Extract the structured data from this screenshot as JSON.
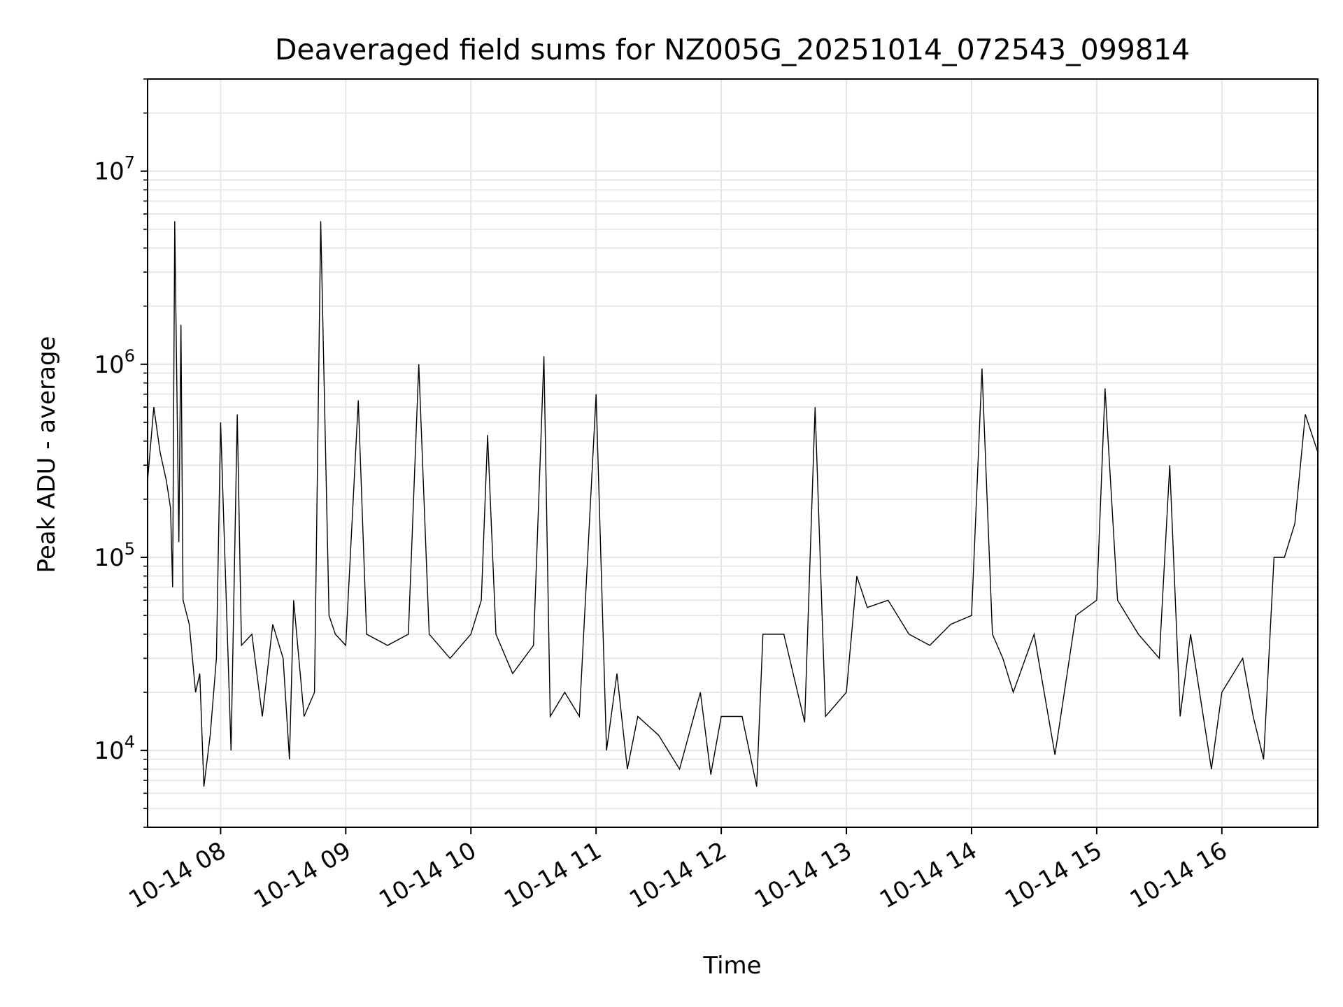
{
  "chart_data": {
    "type": "line",
    "title": "Deaveraged field sums for NZ005G_20251014_072543_099814",
    "xlabel": "Time",
    "ylabel": "Peak ADU - average",
    "x_scale": "time",
    "y_scale": "log",
    "grid": true,
    "grid_minor": true,
    "line_color": "#000000",
    "grid_color": "#e6e6e6",
    "xlim": [
      "2025-10-14 07:25",
      "2025-10-14 16:46"
    ],
    "ylim": [
      4000,
      30000000
    ],
    "x_ticks": [
      {
        "value": "2025-10-14 08:00",
        "label": "10-14 08"
      },
      {
        "value": "2025-10-14 09:00",
        "label": "10-14 09"
      },
      {
        "value": "2025-10-14 10:00",
        "label": "10-14 10"
      },
      {
        "value": "2025-10-14 11:00",
        "label": "10-14 11"
      },
      {
        "value": "2025-10-14 12:00",
        "label": "10-14 12"
      },
      {
        "value": "2025-10-14 13:00",
        "label": "10-14 13"
      },
      {
        "value": "2025-10-14 14:00",
        "label": "10-14 14"
      },
      {
        "value": "2025-10-14 15:00",
        "label": "10-14 15"
      },
      {
        "value": "2025-10-14 16:00",
        "label": "10-14 16"
      }
    ],
    "y_ticks": [
      {
        "value": 10000,
        "base": "10",
        "exp": "4"
      },
      {
        "value": 100000,
        "base": "10",
        "exp": "5"
      },
      {
        "value": 1000000,
        "base": "10",
        "exp": "6"
      },
      {
        "value": 10000000,
        "base": "10",
        "exp": "7"
      }
    ],
    "series": [
      {
        "x": [
          "2025-10-14 07:25",
          "2025-10-14 07:28",
          "2025-10-14 07:31",
          "2025-10-14 07:34",
          "2025-10-14 07:36",
          "2025-10-14 07:37",
          "2025-10-14 07:38",
          "2025-10-14 07:40",
          "2025-10-14 07:41",
          "2025-10-14 07:42",
          "2025-10-14 07:45",
          "2025-10-14 07:48",
          "2025-10-14 07:50",
          "2025-10-14 07:52",
          "2025-10-14 07:55",
          "2025-10-14 07:58",
          "2025-10-14 08:00",
          "2025-10-14 08:05",
          "2025-10-14 08:08",
          "2025-10-14 08:10",
          "2025-10-14 08:15",
          "2025-10-14 08:20",
          "2025-10-14 08:25",
          "2025-10-14 08:30",
          "2025-10-14 08:33",
          "2025-10-14 08:35",
          "2025-10-14 08:40",
          "2025-10-14 08:45",
          "2025-10-14 08:48",
          "2025-10-14 08:52",
          "2025-10-14 08:55",
          "2025-10-14 09:00",
          "2025-10-14 09:06",
          "2025-10-14 09:10",
          "2025-10-14 09:20",
          "2025-10-14 09:30",
          "2025-10-14 09:35",
          "2025-10-14 09:40",
          "2025-10-14 09:50",
          "2025-10-14 10:00",
          "2025-10-14 10:05",
          "2025-10-14 10:08",
          "2025-10-14 10:12",
          "2025-10-14 10:20",
          "2025-10-14 10:30",
          "2025-10-14 10:35",
          "2025-10-14 10:38",
          "2025-10-14 10:45",
          "2025-10-14 10:52",
          "2025-10-14 11:00",
          "2025-10-14 11:05",
          "2025-10-14 11:10",
          "2025-10-14 11:15",
          "2025-10-14 11:20",
          "2025-10-14 11:30",
          "2025-10-14 11:40",
          "2025-10-14 11:50",
          "2025-10-14 11:55",
          "2025-10-14 12:00",
          "2025-10-14 12:10",
          "2025-10-14 12:17",
          "2025-10-14 12:20",
          "2025-10-14 12:30",
          "2025-10-14 12:40",
          "2025-10-14 12:45",
          "2025-10-14 12:50",
          "2025-10-14 13:00",
          "2025-10-14 13:05",
          "2025-10-14 13:10",
          "2025-10-14 13:20",
          "2025-10-14 13:30",
          "2025-10-14 13:40",
          "2025-10-14 13:50",
          "2025-10-14 14:00",
          "2025-10-14 14:05",
          "2025-10-14 14:10",
          "2025-10-14 14:15",
          "2025-10-14 14:20",
          "2025-10-14 14:30",
          "2025-10-14 14:40",
          "2025-10-14 14:50",
          "2025-10-14 15:00",
          "2025-10-14 15:04",
          "2025-10-14 15:10",
          "2025-10-14 15:20",
          "2025-10-14 15:30",
          "2025-10-14 15:35",
          "2025-10-14 15:40",
          "2025-10-14 15:45",
          "2025-10-14 15:55",
          "2025-10-14 16:00",
          "2025-10-14 16:10",
          "2025-10-14 16:15",
          "2025-10-14 16:20",
          "2025-10-14 16:25",
          "2025-10-14 16:30",
          "2025-10-14 16:35",
          "2025-10-14 16:40",
          "2025-10-14 16:46"
        ],
        "values": [
          250000,
          600000,
          350000,
          250000,
          180000,
          70000,
          5500000,
          120000,
          1600000,
          60000,
          45000,
          20000,
          25000,
          6500,
          12000,
          30000,
          500000,
          10000,
          550000,
          35000,
          40000,
          15000,
          45000,
          30000,
          9000,
          60000,
          15000,
          20000,
          5500000,
          50000,
          40000,
          35000,
          650000,
          40000,
          35000,
          40000,
          1000000,
          40000,
          30000,
          40000,
          60000,
          430000,
          40000,
          25000,
          35000,
          1100000,
          15000,
          20000,
          15000,
          700000,
          10000,
          25000,
          8000,
          15000,
          12000,
          8000,
          20000,
          7500,
          15000,
          15000,
          6500,
          40000,
          40000,
          14000,
          600000,
          15000,
          20000,
          80000,
          55000,
          60000,
          40000,
          35000,
          45000,
          50000,
          950000,
          40000,
          30000,
          20000,
          40000,
          9500,
          50000,
          60000,
          750000,
          60000,
          40000,
          30000,
          300000,
          15000,
          40000,
          8000,
          20000,
          30000,
          15000,
          9000,
          100000,
          100000,
          150000,
          550000,
          350000
        ]
      }
    ]
  }
}
